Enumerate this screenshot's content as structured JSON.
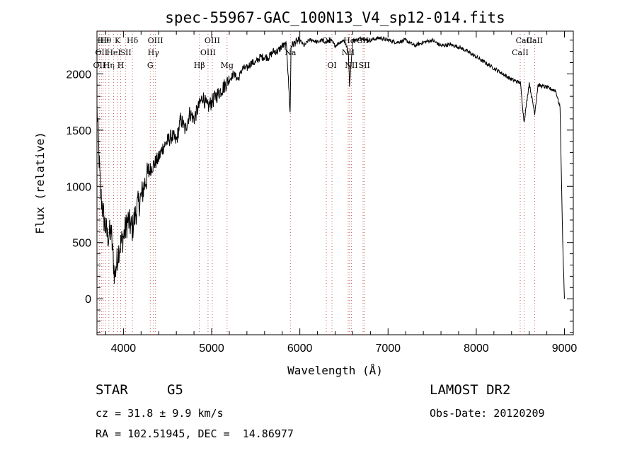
{
  "chart_data": {
    "type": "line",
    "title": "spec-55967-GAC_100N13_V4_sp12-014.fits",
    "xlabel": "Wavelength (Å)",
    "ylabel": "Flux (relative)",
    "xlim": [
      3700,
      9100
    ],
    "ylim": [
      -320,
      2380
    ],
    "xticks": [
      4000,
      5000,
      6000,
      7000,
      8000,
      9000
    ],
    "yticks": [
      0,
      500,
      1000,
      1500,
      2000
    ],
    "grid": false,
    "series": [
      {
        "x": [
          3700,
          3740,
          3780,
          3820,
          3860,
          3900,
          3950,
          4000,
          4050,
          4100,
          4150,
          4200,
          4250,
          4300,
          4350,
          4400,
          4450,
          4500,
          4550,
          4600,
          4650,
          4700,
          4750,
          4800,
          4850,
          4900,
          4950,
          5000,
          5050,
          5100,
          5150,
          5200,
          5250,
          5300,
          5350,
          5400,
          5450,
          5500,
          5550,
          5600,
          5650,
          5700,
          5750,
          5800,
          5850,
          5890,
          5900,
          5950,
          6000,
          6050,
          6100,
          6150,
          6200,
          6250,
          6300,
          6350,
          6400,
          6450,
          6500,
          6550,
          6563,
          6600,
          6650,
          6700,
          6750,
          6800,
          6900,
          7000,
          7100,
          7200,
          7300,
          7400,
          7500,
          7600,
          7700,
          7800,
          7900,
          8000,
          8100,
          8200,
          8300,
          8400,
          8500,
          8542,
          8600,
          8662,
          8700,
          8800,
          8900,
          8950,
          8980,
          9000
        ],
        "y": [
          1700,
          950,
          700,
          550,
          600,
          200,
          450,
          550,
          700,
          620,
          800,
          900,
          1050,
          1150,
          1200,
          1250,
          1350,
          1400,
          1450,
          1400,
          1600,
          1500,
          1650,
          1600,
          1700,
          1800,
          1700,
          1750,
          1800,
          1850,
          1900,
          1950,
          2000,
          1950,
          2050,
          2050,
          2100,
          2100,
          2150,
          2150,
          2150,
          2200,
          2200,
          2250,
          2250,
          1650,
          2250,
          2280,
          2300,
          2250,
          2300,
          2300,
          2280,
          2300,
          2280,
          2300,
          2250,
          2280,
          2300,
          2200,
          1900,
          2300,
          2300,
          2320,
          2300,
          2300,
          2320,
          2300,
          2280,
          2300,
          2250,
          2280,
          2300,
          2250,
          2260,
          2240,
          2200,
          2150,
          2100,
          2050,
          2000,
          1950,
          1920,
          1570,
          1920,
          1650,
          1900,
          1880,
          1850,
          1700,
          500,
          0
        ]
      }
    ],
    "lines": [
      {
        "x": 3727,
        "label": "OII",
        "row": 2
      },
      {
        "x": 3750,
        "label": "OII",
        "row": 1
      },
      {
        "x": 3770,
        "label": "Hθ",
        "row": 0
      },
      {
        "x": 3798,
        "label": "Hθ",
        "row": 0
      },
      {
        "x": 3835,
        "label": "Hη",
        "row": 2
      },
      {
        "x": 3889,
        "label": "HeI",
        "row": 1
      },
      {
        "x": 3934,
        "label": "K",
        "row": 0
      },
      {
        "x": 3969,
        "label": "H",
        "row": 2
      },
      {
        "x": 4026,
        "label": "SII",
        "row": 1
      },
      {
        "x": 4102,
        "label": "Hδ",
        "row": 0
      },
      {
        "x": 4304,
        "label": "G",
        "row": 2
      },
      {
        "x": 4340,
        "label": "Hγ",
        "row": 1
      },
      {
        "x": 4363,
        "label": "OIII",
        "row": 0
      },
      {
        "x": 4861,
        "label": "Hβ",
        "row": 2
      },
      {
        "x": 4959,
        "label": "OIII",
        "row": 1
      },
      {
        "x": 5007,
        "label": "OIII",
        "row": 0
      },
      {
        "x": 5175,
        "label": "Mg",
        "row": 2
      },
      {
        "x": 5893,
        "label": "Na",
        "row": 1
      },
      {
        "x": 6300,
        "label": "OI",
        "row": 0
      },
      {
        "x": 6364,
        "label": "OI",
        "row": 2
      },
      {
        "x": 6548,
        "label": "NII",
        "row": 1
      },
      {
        "x": 6563,
        "label": "Hα",
        "row": 0
      },
      {
        "x": 6584,
        "label": "NII",
        "row": 2
      },
      {
        "x": 6717,
        "label": "SII",
        "row": 0
      },
      {
        "x": 6731,
        "label": "SII",
        "row": 2
      },
      {
        "x": 8498,
        "label": "CaII",
        "row": 1
      },
      {
        "x": 8542,
        "label": "CaII",
        "row": 0
      },
      {
        "x": 8662,
        "label": "CaII",
        "row": 0
      }
    ]
  },
  "info": {
    "object_class": "STAR",
    "subclass": "G5",
    "survey": "LAMOST DR2",
    "redshift": "cz = 31.8 ± 9.9 km/s",
    "obs_date": "Obs-Date: 20120209",
    "coords": "RA = 102.51945, DEC =  14.86977"
  }
}
